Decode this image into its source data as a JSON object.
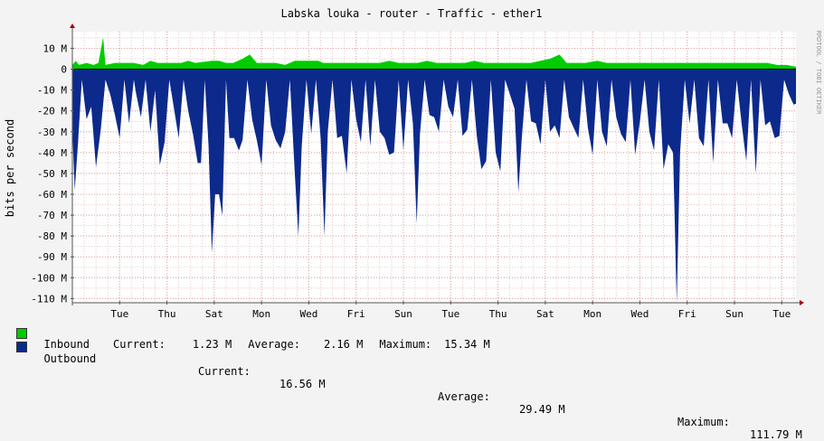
{
  "chart_data": {
    "type": "area",
    "title": "Labska louka - router - Traffic - ether1",
    "ylabel": "bits per second",
    "watermark": "RRDTOOL / TOBI OETIKER",
    "ylim": [
      -112,
      18
    ],
    "y_unit": "M",
    "y_ticks": [
      10,
      0,
      -10,
      -20,
      -30,
      -40,
      -50,
      -60,
      -70,
      -80,
      -90,
      -100,
      -110
    ],
    "y_tick_labels": [
      "10 M",
      "0",
      "-10 M",
      "-20 M",
      "-30 M",
      "-40 M",
      "-50 M",
      "-60 M",
      "-70 M",
      "-80 M",
      "-90 M",
      "-100 M",
      "-110 M"
    ],
    "x_range_days": [
      0,
      15.3
    ],
    "x_ticks": [
      {
        "day": 1,
        "label": "Tue"
      },
      {
        "day": 2,
        "label": "Thu"
      },
      {
        "day": 3,
        "label": "Sat"
      },
      {
        "day": 4,
        "label": "Mon"
      },
      {
        "day": 5,
        "label": "Wed"
      },
      {
        "day": 6,
        "label": "Fri"
      },
      {
        "day": 7,
        "label": "Sun"
      },
      {
        "day": 8,
        "label": "Tue"
      },
      {
        "day": 9,
        "label": "Thu"
      },
      {
        "day": 10,
        "label": "Sat"
      },
      {
        "day": 11,
        "label": "Mon"
      },
      {
        "day": 12,
        "label": "Wed"
      },
      {
        "day": 13,
        "label": "Fri"
      },
      {
        "day": 14,
        "label": "Sun"
      },
      {
        "day": 15,
        "label": "Tue"
      }
    ],
    "grid": true,
    "series": [
      {
        "name": "Inbound",
        "color": "#00cc00",
        "points": [
          [
            0,
            2
          ],
          [
            0.07,
            4
          ],
          [
            0.14,
            2
          ],
          [
            0.3,
            3
          ],
          [
            0.45,
            2
          ],
          [
            0.55,
            3
          ],
          [
            0.65,
            15.3
          ],
          [
            0.7,
            2
          ],
          [
            0.9,
            3
          ],
          [
            1.1,
            3
          ],
          [
            1.3,
            3
          ],
          [
            1.5,
            2
          ],
          [
            1.65,
            4
          ],
          [
            1.8,
            3
          ],
          [
            2.1,
            3
          ],
          [
            2.3,
            3
          ],
          [
            2.45,
            4
          ],
          [
            2.6,
            3
          ],
          [
            2.95,
            4
          ],
          [
            3.1,
            4
          ],
          [
            3.25,
            3
          ],
          [
            3.4,
            3
          ],
          [
            3.6,
            5
          ],
          [
            3.75,
            7
          ],
          [
            3.9,
            3
          ],
          [
            4.1,
            3
          ],
          [
            4.3,
            3
          ],
          [
            4.5,
            2
          ],
          [
            4.7,
            4
          ],
          [
            4.9,
            4
          ],
          [
            5.0,
            4
          ],
          [
            5.2,
            4
          ],
          [
            5.3,
            3
          ],
          [
            5.5,
            3
          ],
          [
            5.7,
            3
          ],
          [
            5.85,
            3
          ],
          [
            6.1,
            3
          ],
          [
            6.3,
            3
          ],
          [
            6.5,
            3
          ],
          [
            6.7,
            4
          ],
          [
            6.9,
            3
          ],
          [
            7.1,
            3
          ],
          [
            7.3,
            3
          ],
          [
            7.5,
            4
          ],
          [
            7.7,
            3
          ],
          [
            7.9,
            3
          ],
          [
            8.1,
            3
          ],
          [
            8.3,
            3
          ],
          [
            8.5,
            4
          ],
          [
            8.7,
            3
          ],
          [
            8.9,
            3
          ],
          [
            9.1,
            3
          ],
          [
            9.3,
            3
          ],
          [
            9.5,
            3
          ],
          [
            9.7,
            3
          ],
          [
            9.9,
            4
          ],
          [
            10.1,
            5
          ],
          [
            10.3,
            7
          ],
          [
            10.45,
            3
          ],
          [
            10.65,
            3
          ],
          [
            10.85,
            3
          ],
          [
            11.1,
            4
          ],
          [
            11.3,
            3
          ],
          [
            11.5,
            3
          ],
          [
            11.7,
            3
          ],
          [
            11.9,
            3
          ],
          [
            12.1,
            3
          ],
          [
            12.3,
            3
          ],
          [
            12.5,
            3
          ],
          [
            12.7,
            3
          ],
          [
            12.9,
            3
          ],
          [
            13.1,
            3
          ],
          [
            13.3,
            3
          ],
          [
            13.5,
            3
          ],
          [
            13.7,
            3
          ],
          [
            13.9,
            3
          ],
          [
            14.1,
            3
          ],
          [
            14.3,
            3
          ],
          [
            14.5,
            3
          ],
          [
            14.7,
            3
          ],
          [
            14.9,
            2
          ],
          [
            15.1,
            2
          ],
          [
            15.3,
            1.2
          ]
        ]
      },
      {
        "name": "Outbound",
        "color": "#0c2a8c",
        "points": [
          [
            0,
            -29
          ],
          [
            0.05,
            -58
          ],
          [
            0.12,
            -35
          ],
          [
            0.2,
            -5
          ],
          [
            0.3,
            -24
          ],
          [
            0.4,
            -18
          ],
          [
            0.5,
            -47
          ],
          [
            0.6,
            -29
          ],
          [
            0.7,
            -5
          ],
          [
            0.8,
            -12
          ],
          [
            0.9,
            -22
          ],
          [
            1.0,
            -33
          ],
          [
            1.1,
            -5
          ],
          [
            1.2,
            -26
          ],
          [
            1.3,
            -5
          ],
          [
            1.35,
            -12
          ],
          [
            1.45,
            -23
          ],
          [
            1.55,
            -5
          ],
          [
            1.65,
            -30
          ],
          [
            1.75,
            -10
          ],
          [
            1.85,
            -46
          ],
          [
            1.95,
            -35
          ],
          [
            2.05,
            -5
          ],
          [
            2.15,
            -19
          ],
          [
            2.25,
            -33
          ],
          [
            2.35,
            -5
          ],
          [
            2.45,
            -20
          ],
          [
            2.55,
            -31
          ],
          [
            2.65,
            -45
          ],
          [
            2.72,
            -45
          ],
          [
            2.8,
            -5
          ],
          [
            2.88,
            -37
          ],
          [
            2.95,
            -88
          ],
          [
            3.02,
            -60
          ],
          [
            3.1,
            -60
          ],
          [
            3.17,
            -70
          ],
          [
            3.25,
            -5
          ],
          [
            3.32,
            -33
          ],
          [
            3.42,
            -33
          ],
          [
            3.52,
            -39
          ],
          [
            3.6,
            -34
          ],
          [
            3.7,
            -5
          ],
          [
            3.8,
            -24
          ],
          [
            3.9,
            -34
          ],
          [
            4.0,
            -46
          ],
          [
            4.1,
            -5
          ],
          [
            4.2,
            -27
          ],
          [
            4.3,
            -34
          ],
          [
            4.4,
            -38
          ],
          [
            4.5,
            -30
          ],
          [
            4.6,
            -5
          ],
          [
            4.7,
            -49
          ],
          [
            4.78,
            -80
          ],
          [
            4.85,
            -37
          ],
          [
            4.95,
            -5
          ],
          [
            5.05,
            -31
          ],
          [
            5.15,
            -5
          ],
          [
            5.25,
            -33
          ],
          [
            5.33,
            -80
          ],
          [
            5.4,
            -30
          ],
          [
            5.5,
            -5
          ],
          [
            5.6,
            -33
          ],
          [
            5.7,
            -32
          ],
          [
            5.8,
            -50
          ],
          [
            5.9,
            -5
          ],
          [
            6.0,
            -24
          ],
          [
            6.1,
            -35
          ],
          [
            6.2,
            -5
          ],
          [
            6.3,
            -37
          ],
          [
            6.4,
            -5
          ],
          [
            6.5,
            -30
          ],
          [
            6.6,
            -33
          ],
          [
            6.7,
            -41
          ],
          [
            6.8,
            -40
          ],
          [
            6.9,
            -5
          ],
          [
            7.0,
            -39
          ],
          [
            7.1,
            -5
          ],
          [
            7.2,
            -26
          ],
          [
            7.28,
            -74
          ],
          [
            7.35,
            -31
          ],
          [
            7.45,
            -5
          ],
          [
            7.55,
            -22
          ],
          [
            7.65,
            -23
          ],
          [
            7.75,
            -30
          ],
          [
            7.85,
            -5
          ],
          [
            7.95,
            -18
          ],
          [
            8.05,
            -23
          ],
          [
            8.15,
            -5
          ],
          [
            8.25,
            -32
          ],
          [
            8.35,
            -29
          ],
          [
            8.45,
            -5
          ],
          [
            8.55,
            -32
          ],
          [
            8.65,
            -48
          ],
          [
            8.75,
            -44
          ],
          [
            8.85,
            -5
          ],
          [
            8.95,
            -40
          ],
          [
            9.05,
            -49
          ],
          [
            9.15,
            -5
          ],
          [
            9.25,
            -12
          ],
          [
            9.35,
            -19
          ],
          [
            9.43,
            -59
          ],
          [
            9.5,
            -34
          ],
          [
            9.6,
            -5
          ],
          [
            9.7,
            -25
          ],
          [
            9.8,
            -26
          ],
          [
            9.9,
            -36
          ],
          [
            10.0,
            -5
          ],
          [
            10.1,
            -30
          ],
          [
            10.2,
            -27
          ],
          [
            10.3,
            -33
          ],
          [
            10.4,
            -5
          ],
          [
            10.5,
            -23
          ],
          [
            10.6,
            -28
          ],
          [
            10.7,
            -33
          ],
          [
            10.8,
            -5
          ],
          [
            10.9,
            -28
          ],
          [
            11.0,
            -41
          ],
          [
            11.1,
            -5
          ],
          [
            11.2,
            -30
          ],
          [
            11.3,
            -37
          ],
          [
            11.4,
            -5
          ],
          [
            11.5,
            -23
          ],
          [
            11.6,
            -31
          ],
          [
            11.7,
            -35
          ],
          [
            11.8,
            -5
          ],
          [
            11.9,
            -41
          ],
          [
            12.0,
            -25
          ],
          [
            12.1,
            -5
          ],
          [
            12.2,
            -30
          ],
          [
            12.3,
            -39
          ],
          [
            12.4,
            -5
          ],
          [
            12.5,
            -48
          ],
          [
            12.6,
            -36
          ],
          [
            12.7,
            -40
          ],
          [
            12.78,
            -111.8
          ],
          [
            12.85,
            -40
          ],
          [
            12.95,
            -5
          ],
          [
            13.05,
            -26
          ],
          [
            13.15,
            -5
          ],
          [
            13.25,
            -33
          ],
          [
            13.35,
            -37
          ],
          [
            13.45,
            -5
          ],
          [
            13.55,
            -45
          ],
          [
            13.65,
            -5
          ],
          [
            13.75,
            -26
          ],
          [
            13.85,
            -26
          ],
          [
            13.95,
            -33
          ],
          [
            14.05,
            -5
          ],
          [
            14.15,
            -26
          ],
          [
            14.25,
            -44
          ],
          [
            14.35,
            -5
          ],
          [
            14.45,
            -50
          ],
          [
            14.55,
            -5
          ],
          [
            14.65,
            -27
          ],
          [
            14.75,
            -25
          ],
          [
            14.85,
            -33
          ],
          [
            14.95,
            -32
          ],
          [
            15.05,
            -5
          ],
          [
            15.15,
            -12
          ],
          [
            15.25,
            -17
          ],
          [
            15.3,
            -16.6
          ]
        ]
      }
    ],
    "legend": [
      {
        "name": "Inbound",
        "color": "#00cc00",
        "current_label": "Current:",
        "current": "1.23 M",
        "average_label": "Average:",
        "average": "2.16 M",
        "maximum_label": "Maximum:",
        "maximum": "15.34 M"
      },
      {
        "name": "Outbound",
        "color": "#0c2a8c",
        "current_label": "Current:",
        "current": "16.56 M",
        "average_label": "Average:",
        "average": "29.49 M",
        "maximum_label": "Maximum:",
        "maximum": "111.79 M"
      }
    ]
  }
}
